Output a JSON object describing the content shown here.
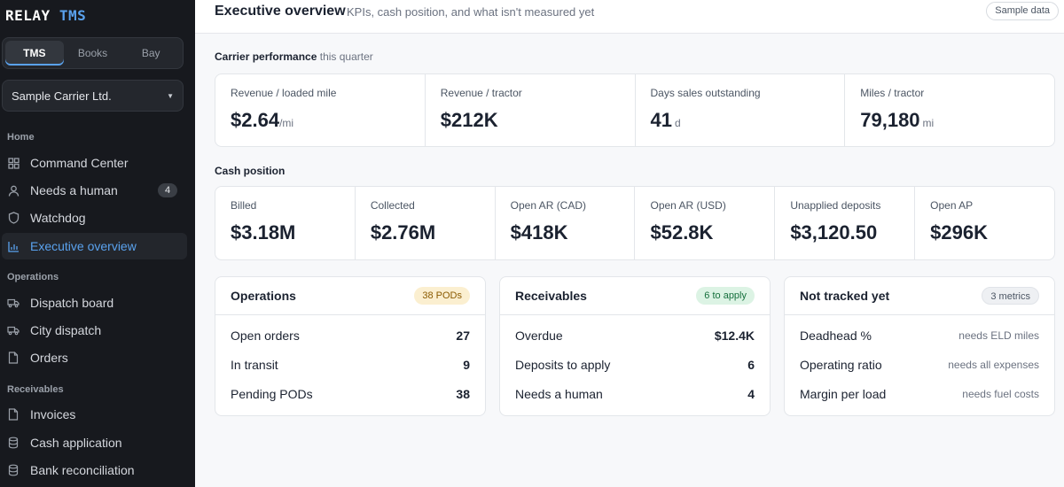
{
  "brand": {
    "part1": "RELAY",
    "part2": "TMS"
  },
  "app_tabs": [
    {
      "label": "TMS",
      "active": true
    },
    {
      "label": "Books",
      "active": false
    },
    {
      "label": "Bay",
      "active": false
    }
  ],
  "org_select": {
    "value": "Sample Carrier Ltd."
  },
  "sidebar": {
    "sections": [
      {
        "label": "Home",
        "items": [
          {
            "label": "Command Center",
            "icon": "grid-icon"
          },
          {
            "label": "Needs a human",
            "icon": "user-icon",
            "badge": "4"
          },
          {
            "label": "Watchdog",
            "icon": "shield-icon"
          },
          {
            "label": "Executive overview",
            "icon": "bar-chart-icon",
            "active": true
          }
        ]
      },
      {
        "label": "Operations",
        "items": [
          {
            "label": "Dispatch board",
            "icon": "truck-icon"
          },
          {
            "label": "City dispatch",
            "icon": "truck-icon"
          },
          {
            "label": "Orders",
            "icon": "document-icon"
          }
        ]
      },
      {
        "label": "Receivables",
        "items": [
          {
            "label": "Invoices",
            "icon": "document-icon"
          },
          {
            "label": "Cash application",
            "icon": "database-icon"
          },
          {
            "label": "Bank reconciliation",
            "icon": "database-icon"
          }
        ]
      }
    ]
  },
  "header": {
    "title": "Executive overview",
    "subtitle": "KPIs, cash position, and what isn't measured yet",
    "sample_badge": "Sample data"
  },
  "carrier_performance": {
    "label": "Carrier performance",
    "label_suffix": "this quarter",
    "kpis": [
      {
        "label": "Revenue / loaded mile",
        "value": "$2.64",
        "unit": "/mi"
      },
      {
        "label": "Revenue / tractor",
        "value": "$212K",
        "unit": ""
      },
      {
        "label": "Days sales outstanding",
        "value": "41",
        "unit": "d"
      },
      {
        "label": "Miles / tractor",
        "value": "79,180",
        "unit": "mi"
      }
    ]
  },
  "cash_position": {
    "label": "Cash position",
    "kpis": [
      {
        "label": "Billed",
        "value": "$3.18M"
      },
      {
        "label": "Collected",
        "value": "$2.76M"
      },
      {
        "label": "Open AR (CAD)",
        "value": "$418K"
      },
      {
        "label": "Open AR (USD)",
        "value": "$52.8K"
      },
      {
        "label": "Unapplied deposits",
        "value": "$3,120.50"
      },
      {
        "label": "Open AP",
        "value": "$296K"
      }
    ]
  },
  "cards": [
    {
      "title": "Operations",
      "badge": "38 PODs",
      "badge_color": "#fbefd0",
      "rows": [
        {
          "label": "Open orders",
          "value": "27"
        },
        {
          "label": "In transit",
          "value": "9"
        },
        {
          "label": "Pending PODs",
          "value": "38"
        }
      ]
    },
    {
      "title": "Receivables",
      "badge": "6 to apply",
      "badge_color": "#dcf3e4",
      "rows": [
        {
          "label": "Overdue",
          "value": "$12.4K"
        },
        {
          "label": "Deposits to apply",
          "value": "6"
        },
        {
          "label": "Needs a human",
          "value": "4"
        }
      ]
    },
    {
      "title": "Not tracked yet",
      "badge": "3 metrics",
      "badge_color": "#eef0f3",
      "rows": [
        {
          "label": "Deadhead %",
          "note": "needs ELD miles"
        },
        {
          "label": "Operating ratio",
          "note": "needs all expenses"
        },
        {
          "label": "Margin per load",
          "note": "needs fuel costs"
        }
      ]
    }
  ],
  "colors": {
    "accent": "#5aa2ee",
    "sidebar_bg": "#17191e",
    "page_bg": "#f7f8fa"
  }
}
